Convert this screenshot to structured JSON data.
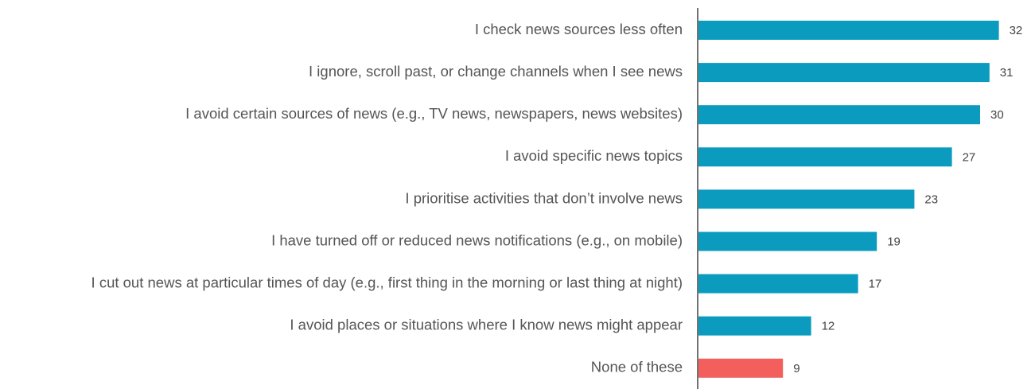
{
  "chart_data": {
    "type": "bar",
    "categories": [
      "I check news sources less often",
      "I ignore, scroll past, or change channels when I see news",
      "I avoid certain sources of news (e.g., TV news, newspapers, news websites)",
      "I avoid specific news topics",
      "I prioritise activities that don’t involve news",
      "I have turned off or reduced news notifications (e.g., on mobile)",
      "I cut out news at particular times of day (e.g., first thing in the morning or last thing at night)",
      "I avoid places or situations where I know news might appear",
      "None of these"
    ],
    "values": [
      32,
      31,
      30,
      27,
      23,
      19,
      17,
      12,
      9
    ],
    "colors": [
      "#0a9bbf",
      "#0a9bbf",
      "#0a9bbf",
      "#0a9bbf",
      "#0a9bbf",
      "#0a9bbf",
      "#0a9bbf",
      "#0a9bbf",
      "#f25f5c"
    ]
  }
}
